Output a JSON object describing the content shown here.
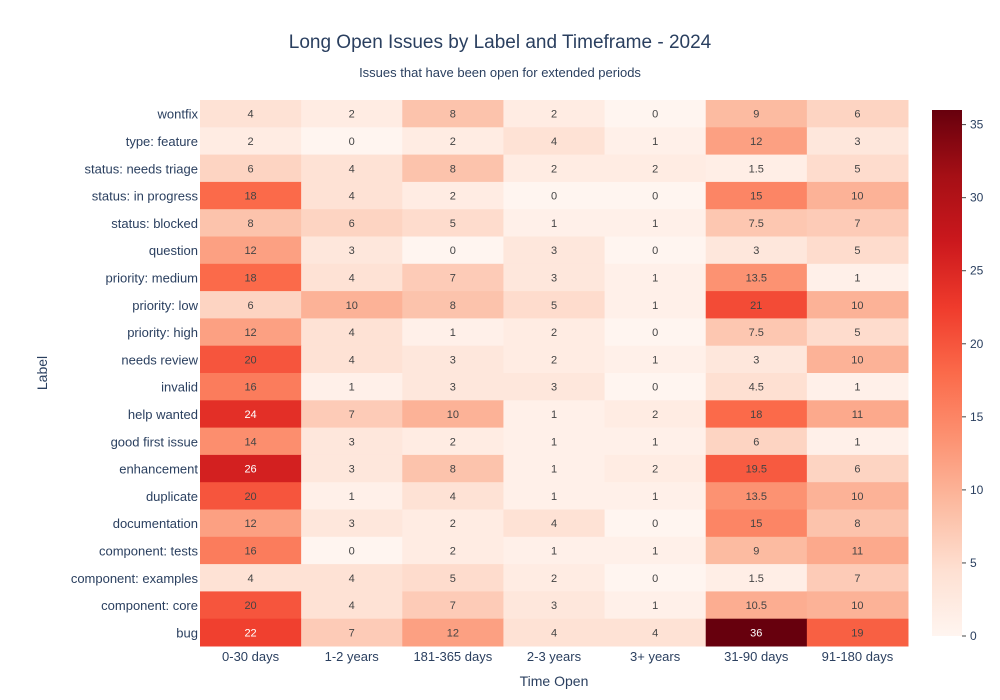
{
  "chart_data": {
    "type": "heatmap",
    "title": "Long Open Issues by Label and Timeframe - 2024",
    "subtitle": "Issues that have been open for extended periods",
    "xlabel": "Time Open",
    "ylabel": "Label",
    "x_categories": [
      "0-30 days",
      "1-2 years",
      "181-365 days",
      "2-3 years",
      "3+ years",
      "31-90 days",
      "91-180 days"
    ],
    "y_categories": [
      "wontfix",
      "type: feature",
      "status: needs triage",
      "status: in progress",
      "status: blocked",
      "question",
      "priority: medium",
      "priority: low",
      "priority: high",
      "needs review",
      "invalid",
      "help wanted",
      "good first issue",
      "enhancement",
      "duplicate",
      "documentation",
      "component: tests",
      "component: examples",
      "component: core",
      "bug"
    ],
    "z": [
      [
        4,
        2,
        8,
        2,
        0,
        9,
        6
      ],
      [
        2,
        0,
        2,
        4,
        1,
        12,
        3
      ],
      [
        6,
        4,
        8,
        2,
        2,
        1.5,
        5
      ],
      [
        18,
        4,
        2,
        0,
        0,
        15,
        10
      ],
      [
        8,
        6,
        5,
        1,
        1,
        7.5,
        7
      ],
      [
        12,
        3,
        0,
        3,
        0,
        3,
        5
      ],
      [
        18,
        4,
        7,
        3,
        1,
        13.5,
        1
      ],
      [
        6,
        10,
        8,
        5,
        1,
        21,
        10
      ],
      [
        12,
        4,
        1,
        2,
        0,
        7.5,
        5
      ],
      [
        20,
        4,
        3,
        2,
        1,
        3,
        10
      ],
      [
        16,
        1,
        3,
        3,
        0,
        4.5,
        1
      ],
      [
        24,
        7,
        10,
        1,
        2,
        18,
        11
      ],
      [
        14,
        3,
        2,
        1,
        1,
        6,
        1
      ],
      [
        26,
        3,
        8,
        1,
        2,
        19.5,
        6
      ],
      [
        20,
        1,
        4,
        1,
        1,
        13.5,
        10
      ],
      [
        12,
        3,
        2,
        4,
        0,
        15,
        8
      ],
      [
        16,
        0,
        2,
        1,
        1,
        9,
        11
      ],
      [
        4,
        4,
        5,
        2,
        0,
        1.5,
        7
      ],
      [
        20,
        4,
        7,
        3,
        1,
        10.5,
        10
      ],
      [
        22,
        7,
        12,
        4,
        4,
        36,
        19
      ]
    ],
    "zmin": 0,
    "zmax": 36,
    "colorscale": "Reds",
    "colorbar_ticks": [
      0,
      5,
      10,
      15,
      20,
      25,
      30,
      35
    ],
    "colors": [
      "#fff5f0",
      "#fee0d2",
      "#fcbba1",
      "#fc9272",
      "#fb6a4a",
      "#ef3b2c",
      "#cb181d",
      "#a50f15",
      "#67000d"
    ]
  }
}
